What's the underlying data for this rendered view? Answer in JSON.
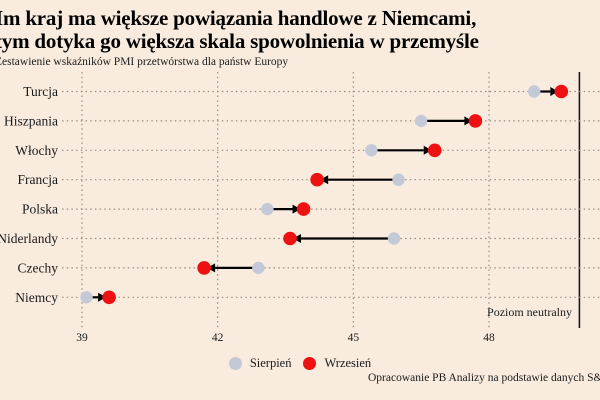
{
  "title": {
    "line1": "Im kraj ma większe powiązania handlowe z Niemcami,",
    "line2": "tym dotyka go większa skala spowolnienia w przemyśle"
  },
  "subtitle": "Zestawienie wskaźników PMI przetwórstwa dla państw Europy",
  "neutral_label": "Poziom neutralny",
  "legend": {
    "august": "Sierpień",
    "september": "Wrzesień"
  },
  "source": "Opracowanie PB Analizy na podstawie danych S&P Global",
  "colors": {
    "background": "#f9ecdf",
    "august_dot": "#c3c9d7",
    "september_dot": "#ee1111",
    "arrow": "#000000",
    "grid": "#958d81",
    "neutral_line": "#1a1a1a",
    "text": "#1a1a1a"
  },
  "chart_data": {
    "type": "dumbbell-arrow",
    "title": "Zestawienie wskaźników PMI przetwórstwa dla państw Europy",
    "xlabel": "",
    "ylabel": "",
    "categories": [
      "Turcja",
      "Hiszpania",
      "Włochy",
      "Francja",
      "Polska",
      "Niderlandy",
      "Czechy",
      "Niemcy"
    ],
    "series": [
      {
        "name": "Sierpień",
        "values": [
          49.0,
          46.5,
          45.4,
          46.0,
          43.1,
          45.9,
          42.9,
          39.1
        ]
      },
      {
        "name": "Wrzesień",
        "values": [
          49.6,
          47.7,
          46.8,
          44.2,
          43.9,
          43.6,
          41.7,
          39.6
        ]
      }
    ],
    "x_ticks": [
      39,
      42,
      45,
      48
    ],
    "xlim": [
      37.2,
      50.5
    ],
    "neutral_value": 50,
    "grid": "dotted",
    "legend_position": "bottom"
  }
}
